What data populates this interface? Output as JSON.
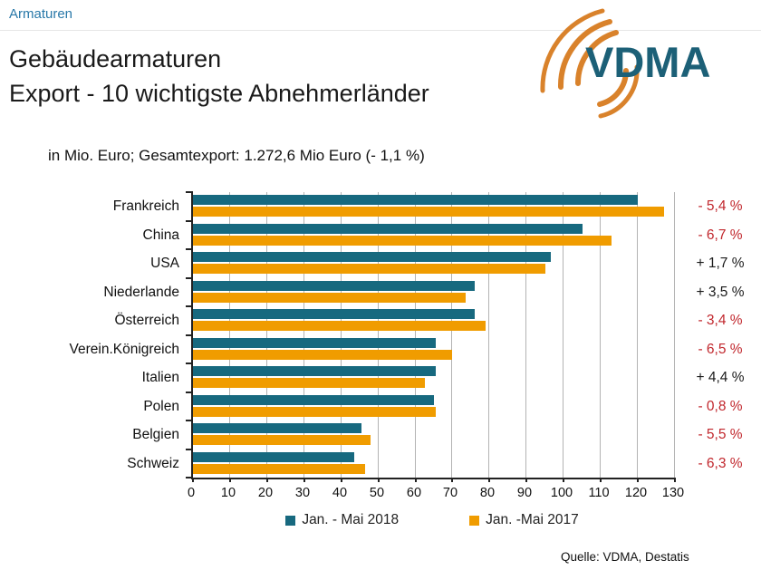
{
  "page": {
    "breadcrumb": "Armaturen",
    "title_line1": "Gebäudearmaturen",
    "title_line2": "Export - 10 wichtigste Abnehmerländer",
    "subtitle": "in Mio. Euro; Gesamtexport: 1.272,6 Mio Euro (- 1,1 %)",
    "logo_text": "VDMA",
    "source": "Quelle: VDMA, Destatis"
  },
  "colors": {
    "series_2018": "#17697F",
    "series_2017": "#F09C00",
    "negative_change": "#C1272D",
    "positive_change": "#1A1A1A",
    "link": "#2878A8",
    "logo_blue": "#1C6077",
    "logo_orange": "#D9822B",
    "gridline": "#B3B3B3"
  },
  "chart_data": {
    "type": "bar",
    "orientation": "horizontal",
    "title": "Gebäudearmaturen Export - 10 wichtigste Abnehmerländer",
    "unit_note": "in Mio. Euro",
    "total_export": "1.272,6 Mio Euro (- 1,1 %)",
    "categories": [
      "Frankreich",
      "China",
      "USA",
      "Niederlande",
      "Österreich",
      "Verein.Königreich",
      "Italien",
      "Polen",
      "Belgien",
      "Schweiz"
    ],
    "series": [
      {
        "name": "Jan. - Mai 2018",
        "color": "#17697F",
        "values": [
          120,
          105,
          96.5,
          76,
          76,
          65.5,
          65.5,
          65,
          45.5,
          43.5
        ]
      },
      {
        "name": "Jan. -Mai 2017",
        "color": "#F09C00",
        "values": [
          127,
          113,
          95,
          73.5,
          79,
          70,
          62.5,
          65.5,
          48,
          46.5
        ]
      }
    ],
    "change_labels": [
      "- 5,4 %",
      "- 6,7 %",
      "+ 1,7 %",
      "+ 3,5 %",
      "- 3,4 %",
      "- 6,5 %",
      "+ 4,4 %",
      "- 0,8 %",
      "- 5,5 %",
      "- 6,3 %"
    ],
    "change_signs": [
      "neg",
      "neg",
      "pos",
      "pos",
      "neg",
      "neg",
      "pos",
      "neg",
      "neg",
      "neg"
    ],
    "xlim": [
      0,
      130
    ],
    "x_ticks": [
      0,
      10,
      20,
      30,
      40,
      50,
      60,
      70,
      80,
      90,
      100,
      110,
      120,
      130
    ],
    "grid": true,
    "legend_position": "bottom"
  }
}
